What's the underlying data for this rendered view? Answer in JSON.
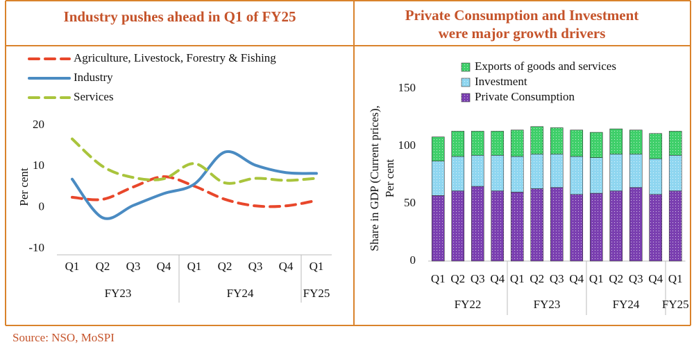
{
  "chart_data": [
    {
      "type": "line",
      "title": "Industry pushes ahead in Q1 of FY25",
      "ylabel": "Per cent",
      "groups": [
        {
          "name": "FY23",
          "categories": [
            "Q1",
            "Q2",
            "Q3",
            "Q4"
          ]
        },
        {
          "name": "FY24",
          "categories": [
            "Q1",
            "Q2",
            "Q3",
            "Q4"
          ]
        },
        {
          "name": "FY25",
          "categories": [
            "Q1"
          ]
        }
      ],
      "ylim": [
        -10,
        20
      ],
      "yticks": [
        -10,
        0,
        10,
        20
      ],
      "series": [
        {
          "name": "Agriculture, Livestock, Forestry & Fishing",
          "color": "#e8472b",
          "line_style": "dashed",
          "values": [
            2.5,
            2,
            5,
            7.5,
            5.2,
            2,
            0.4,
            0.4,
            1.7
          ]
        },
        {
          "name": "Industry",
          "color": "#4a8bc2",
          "line_style": "solid",
          "values": [
            6.9,
            -2.5,
            0.5,
            3.4,
            5.7,
            13.5,
            10.3,
            8.5,
            8.3
          ]
        },
        {
          "name": "Services",
          "color": "#a9c43c",
          "line_style": "dashed",
          "values": [
            16.7,
            10,
            7.3,
            7,
            10.7,
            6,
            7.1,
            6.6,
            7.1
          ]
        }
      ],
      "legend": "top-left"
    },
    {
      "type": "stacked_bar",
      "title": [
        "Private Consumption and Investment",
        "were major growth drivers"
      ],
      "ylabel": [
        "Share in GDP (Current prices),",
        "Per cent"
      ],
      "groups": [
        {
          "name": "FY22",
          "categories": [
            "Q1",
            "Q2",
            "Q3",
            "Q4"
          ]
        },
        {
          "name": "FY23",
          "categories": [
            "Q1",
            "Q2",
            "Q3",
            "Q4"
          ]
        },
        {
          "name": "FY24",
          "categories": [
            "Q1",
            "Q2",
            "Q3",
            "Q4"
          ]
        },
        {
          "name": "FY25",
          "categories": [
            "Q1"
          ]
        }
      ],
      "ylim": [
        0,
        150
      ],
      "yticks": [
        0,
        50,
        100,
        150
      ],
      "series": [
        {
          "name": "Private Consumption",
          "color": "#7a3fb0",
          "values": [
            57,
            61,
            65,
            61,
            60,
            63,
            64,
            58,
            59,
            61,
            64,
            58,
            61
          ]
        },
        {
          "name": "Investment",
          "color": "#8fd6f0",
          "values": [
            30,
            30,
            27,
            31,
            31,
            30,
            29,
            33,
            31,
            32,
            29,
            31,
            31
          ]
        },
        {
          "name": "Exports of goods and services",
          "color": "#3fcf6a",
          "values": [
            21,
            22,
            21,
            21,
            23,
            24,
            23,
            23,
            22,
            22,
            21,
            22,
            21
          ]
        }
      ],
      "legend": "top"
    }
  ],
  "source": "Source: NSO, MoSPI"
}
